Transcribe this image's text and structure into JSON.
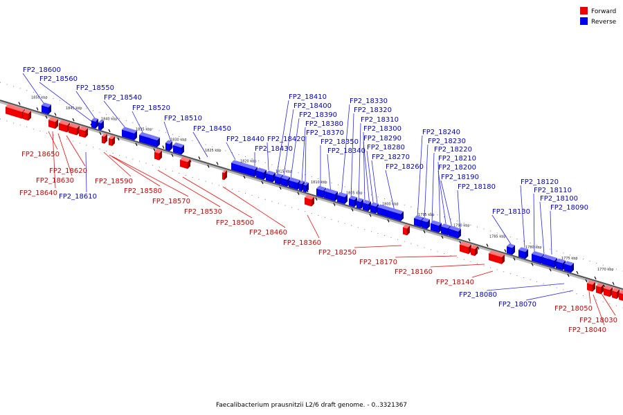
{
  "caption": "Faecalibacterium prausnitzii L2/6 draft genome. - 0..3321367",
  "legend": {
    "forward": {
      "label": "Forward",
      "color": "#ee0000"
    },
    "reverse": {
      "label": "Reverse",
      "color": "#0000ee"
    }
  },
  "kbp_ticks": [
    "1850 kbp",
    "1845 kbp",
    "1840 kbp",
    "1835 kbp",
    "1830 kbp",
    "1825 kbp",
    "1820 kbp",
    "1815 kbp",
    "1810 kbp",
    "1805 kbp",
    "1800 kbp",
    "1795 kbp",
    "1790 kbp",
    "1785 kbp",
    "1780 kbp",
    "1775 kbp",
    "1770 kbp"
  ],
  "reverse_labels": [
    "FP2_18600",
    "FP2_18560",
    "FP2_18550",
    "FP2_18540",
    "FP2_18520",
    "FP2_18510",
    "FP2_18450",
    "FP2_18440",
    "FP2_18430",
    "FP2_18420",
    "FP2_18410",
    "FP2_18400",
    "FP2_18390",
    "FP2_18380",
    "FP2_18370",
    "FP2_18350",
    "FP2_18340",
    "FP2_18330",
    "FP2_18320",
    "FP2_18310",
    "FP2_18300",
    "FP2_18290",
    "FP2_18280",
    "FP2_18270",
    "FP2_18260",
    "FP2_18240",
    "FP2_18230",
    "FP2_18220",
    "FP2_18210",
    "FP2_18200",
    "FP2_18190",
    "FP2_18180",
    "FP2_18130",
    "FP2_18120",
    "FP2_18110",
    "FP2_18100",
    "FP2_18090",
    "FP2_18610",
    "FP2_18080",
    "FP2_18070"
  ],
  "forward_labels": [
    "FP2_18650",
    "FP2_18620",
    "FP2_18630",
    "FP2_18640",
    "FP2_18590",
    "FP2_18580",
    "FP2_18570",
    "FP2_18530",
    "FP2_18500",
    "FP2_18460",
    "FP2_18360",
    "FP2_18250",
    "FP2_18170",
    "FP2_18160",
    "FP2_18140",
    "FP2_18050",
    "FP2_18030",
    "FP2_18040"
  ]
}
